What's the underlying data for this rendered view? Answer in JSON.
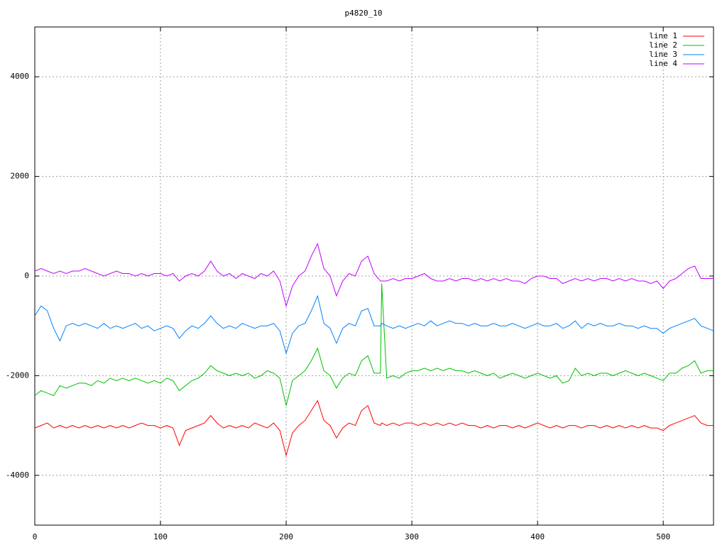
{
  "chart_data": {
    "type": "line",
    "title": "p4820_10",
    "x": [
      0,
      5,
      10,
      15,
      20,
      25,
      30,
      35,
      40,
      45,
      50,
      55,
      60,
      65,
      70,
      75,
      80,
      85,
      90,
      95,
      100,
      105,
      110,
      115,
      120,
      125,
      130,
      135,
      140,
      145,
      150,
      155,
      160,
      165,
      170,
      175,
      180,
      185,
      190,
      195,
      200,
      205,
      210,
      215,
      220,
      225,
      230,
      235,
      240,
      245,
      250,
      255,
      260,
      265,
      270,
      275,
      276,
      280,
      285,
      290,
      295,
      300,
      305,
      310,
      315,
      320,
      325,
      330,
      335,
      340,
      345,
      350,
      355,
      360,
      365,
      370,
      375,
      380,
      385,
      390,
      395,
      400,
      405,
      410,
      415,
      420,
      425,
      430,
      435,
      440,
      445,
      450,
      455,
      460,
      465,
      470,
      475,
      480,
      485,
      490,
      495,
      500,
      505,
      510,
      515,
      520,
      525,
      530,
      535,
      540
    ],
    "series": [
      {
        "name": "line 1",
        "color": "#ff0000",
        "values": [
          -3050,
          -3000,
          -2950,
          -3050,
          -3000,
          -3050,
          -3000,
          -3050,
          -3000,
          -3050,
          -3000,
          -3050,
          -3000,
          -3050,
          -3000,
          -3050,
          -3000,
          -2950,
          -3000,
          -3000,
          -3050,
          -3000,
          -3050,
          -3400,
          -3100,
          -3050,
          -3000,
          -2950,
          -2800,
          -2950,
          -3050,
          -3000,
          -3050,
          -3000,
          -3050,
          -2950,
          -3000,
          -3050,
          -2950,
          -3100,
          -3600,
          -3150,
          -3000,
          -2900,
          -2700,
          -2500,
          -2900,
          -3000,
          -3250,
          -3050,
          -2950,
          -3000,
          -2700,
          -2600,
          -2950,
          -3000,
          -2950,
          -3000,
          -2950,
          -3000,
          -2950,
          -2950,
          -3000,
          -2950,
          -3000,
          -2950,
          -3000,
          -2950,
          -3000,
          -2950,
          -3000,
          -3000,
          -3050,
          -3000,
          -3050,
          -3000,
          -3000,
          -3050,
          -3000,
          -3050,
          -3000,
          -2950,
          -3000,
          -3050,
          -3000,
          -3050,
          -3000,
          -3000,
          -3050,
          -3000,
          -3000,
          -3050,
          -3000,
          -3050,
          -3000,
          -3050,
          -3000,
          -3050,
          -3000,
          -3050,
          -3050,
          -3100,
          -3000,
          -2950,
          -2900,
          -2850,
          -2800,
          -2950,
          -3000,
          -3000
        ]
      },
      {
        "name": "line 2",
        "color": "#00c000",
        "values": [
          -2400,
          -2300,
          -2350,
          -2400,
          -2200,
          -2250,
          -2200,
          -2150,
          -2150,
          -2200,
          -2100,
          -2150,
          -2050,
          -2100,
          -2050,
          -2100,
          -2050,
          -2100,
          -2150,
          -2100,
          -2150,
          -2050,
          -2100,
          -2300,
          -2200,
          -2100,
          -2050,
          -1950,
          -1800,
          -1900,
          -1950,
          -2000,
          -1950,
          -2000,
          -1950,
          -2050,
          -2000,
          -1900,
          -1950,
          -2050,
          -2600,
          -2100,
          -2000,
          -1900,
          -1700,
          -1450,
          -1900,
          -2000,
          -2250,
          -2050,
          -1950,
          -2000,
          -1700,
          -1600,
          -1950,
          -1950,
          -150,
          -2050,
          -2000,
          -2050,
          -1950,
          -1900,
          -1900,
          -1850,
          -1900,
          -1850,
          -1900,
          -1850,
          -1900,
          -1900,
          -1950,
          -1900,
          -1950,
          -2000,
          -1950,
          -2050,
          -2000,
          -1950,
          -2000,
          -2050,
          -2000,
          -1950,
          -2000,
          -2050,
          -2000,
          -2150,
          -2100,
          -1850,
          -2000,
          -1950,
          -2000,
          -1950,
          -1950,
          -2000,
          -1950,
          -1900,
          -1950,
          -2000,
          -1950,
          -2000,
          -2050,
          -2100,
          -1950,
          -1950,
          -1850,
          -1800,
          -1700,
          -1950,
          -1900,
          -1900
        ]
      },
      {
        "name": "line 3",
        "color": "#0080ff",
        "values": [
          -800,
          -600,
          -700,
          -1050,
          -1300,
          -1000,
          -950,
          -1000,
          -950,
          -1000,
          -1050,
          -950,
          -1050,
          -1000,
          -1050,
          -1000,
          -950,
          -1050,
          -1000,
          -1100,
          -1050,
          -1000,
          -1050,
          -1250,
          -1100,
          -1000,
          -1050,
          -950,
          -800,
          -950,
          -1050,
          -1000,
          -1050,
          -950,
          -1000,
          -1050,
          -1000,
          -1000,
          -950,
          -1100,
          -1550,
          -1150,
          -1000,
          -950,
          -700,
          -400,
          -950,
          -1050,
          -1350,
          -1050,
          -950,
          -1000,
          -700,
          -650,
          -1000,
          -1000,
          -950,
          -1000,
          -1050,
          -1000,
          -1050,
          -1000,
          -950,
          -1000,
          -900,
          -1000,
          -950,
          -900,
          -950,
          -950,
          -1000,
          -950,
          -1000,
          -1000,
          -950,
          -1000,
          -1000,
          -950,
          -1000,
          -1050,
          -1000,
          -950,
          -1000,
          -1000,
          -950,
          -1050,
          -1000,
          -900,
          -1050,
          -950,
          -1000,
          -950,
          -1000,
          -1000,
          -950,
          -1000,
          -1000,
          -1050,
          -1000,
          -1050,
          -1050,
          -1150,
          -1050,
          -1000,
          -950,
          -900,
          -850,
          -1000,
          -1050,
          -1100
        ]
      },
      {
        "name": "line 4",
        "color": "#c000ff",
        "values": [
          100,
          150,
          100,
          50,
          100,
          50,
          100,
          100,
          150,
          100,
          50,
          0,
          50,
          100,
          50,
          50,
          0,
          50,
          0,
          50,
          50,
          0,
          50,
          -100,
          0,
          50,
          0,
          100,
          300,
          100,
          0,
          50,
          -50,
          50,
          0,
          -50,
          50,
          0,
          100,
          -100,
          -600,
          -200,
          0,
          100,
          400,
          650,
          150,
          0,
          -400,
          -100,
          50,
          0,
          300,
          400,
          50,
          -100,
          -100,
          -100,
          -50,
          -100,
          -50,
          -50,
          0,
          50,
          -50,
          -100,
          -100,
          -50,
          -100,
          -50,
          -50,
          -100,
          -50,
          -100,
          -50,
          -100,
          -50,
          -100,
          -100,
          -150,
          -50,
          0,
          0,
          -50,
          -50,
          -150,
          -100,
          -50,
          -100,
          -50,
          -100,
          -50,
          -50,
          -100,
          -50,
          -100,
          -50,
          -100,
          -100,
          -150,
          -100,
          -250,
          -100,
          -50,
          50,
          150,
          200,
          -50,
          -50,
          -50
        ]
      }
    ],
    "xlim": [
      0,
      540
    ],
    "ylim": [
      -5000,
      5000
    ],
    "xticks": [
      0,
      100,
      200,
      300,
      400,
      500
    ],
    "yticks": [
      -4000,
      -2000,
      0,
      2000,
      4000
    ],
    "grid": true,
    "legend": "top-right"
  }
}
